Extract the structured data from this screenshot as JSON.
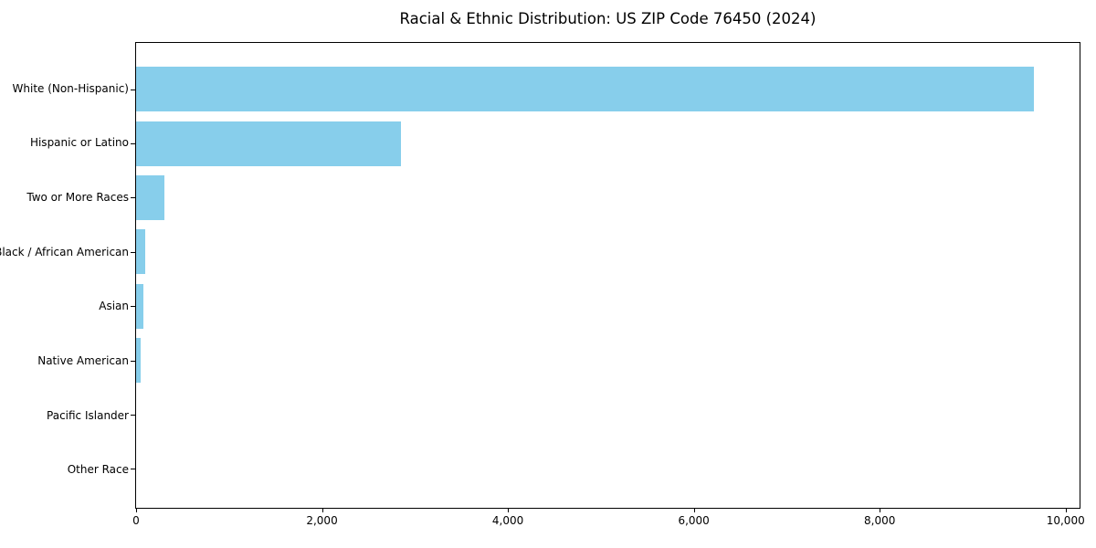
{
  "colors": {
    "bar": "#87CEEB",
    "axis": "#000000",
    "background": "#ffffff",
    "text": "#000000"
  },
  "chart_data": {
    "type": "bar",
    "orientation": "horizontal",
    "title": "Racial & Ethnic Distribution: US ZIP Code 76450 (2024)",
    "xlabel": "",
    "ylabel": "",
    "categories": [
      "White (Non-Hispanic)",
      "Hispanic or Latino",
      "Two or More Races",
      "Black / African American",
      "Asian",
      "Native American",
      "Pacific Islander",
      "Other Race"
    ],
    "values": [
      9660,
      2850,
      305,
      95,
      75,
      45,
      0,
      0
    ],
    "xlim": [
      0,
      10150
    ],
    "x_ticks": [
      0,
      2000,
      4000,
      6000,
      8000,
      10000
    ],
    "x_tick_labels": [
      "0",
      "2,000",
      "4,000",
      "6,000",
      "8,000",
      "10,000"
    ],
    "grid": false,
    "legend": "none",
    "bar_color": "#87CEEB"
  }
}
